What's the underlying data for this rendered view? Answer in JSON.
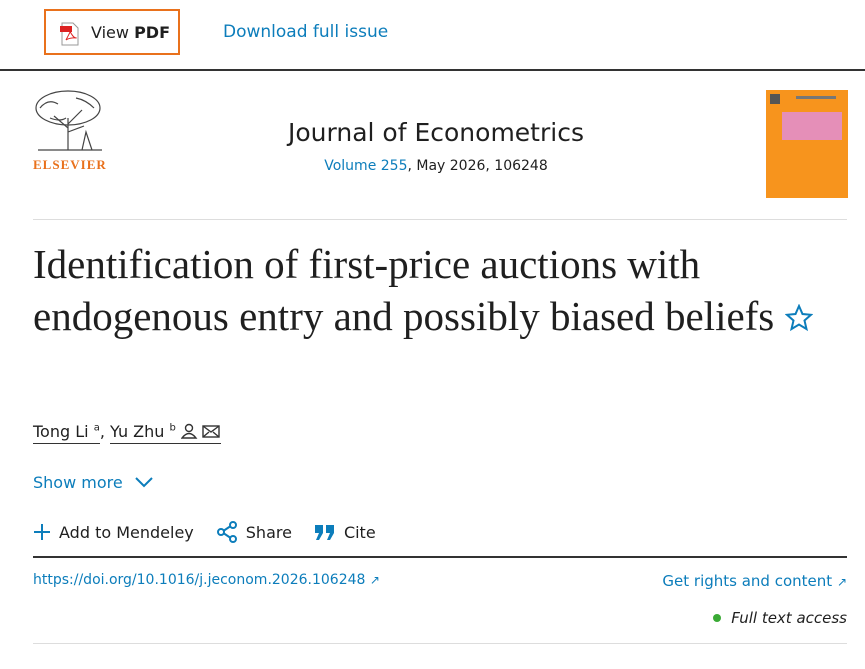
{
  "toolbar": {
    "view_pdf": "View",
    "view_pdf_bold": "PDF",
    "download": "Download full issue"
  },
  "journal": {
    "publisher": "ELSEVIER",
    "name": "Journal of Econometrics",
    "volume": "Volume 255",
    "issue_info": ", May 2026, 106248"
  },
  "article": {
    "title": "Identification of first-price auctions with endogenous entry and possibly biased beliefs",
    "authors": [
      {
        "name": "Tong Li",
        "affiliation": "a"
      },
      {
        "name": "Yu Zhu",
        "affiliation": "b"
      }
    ],
    "author_separator": ",",
    "show_more": "Show more",
    "actions": [
      "Add to Mendeley",
      "Share",
      "Cite"
    ],
    "doi": "https://doi.org/10.1016/j.jeconom.2026.106248",
    "rights": "Get rights and content",
    "access": "Full text access"
  }
}
